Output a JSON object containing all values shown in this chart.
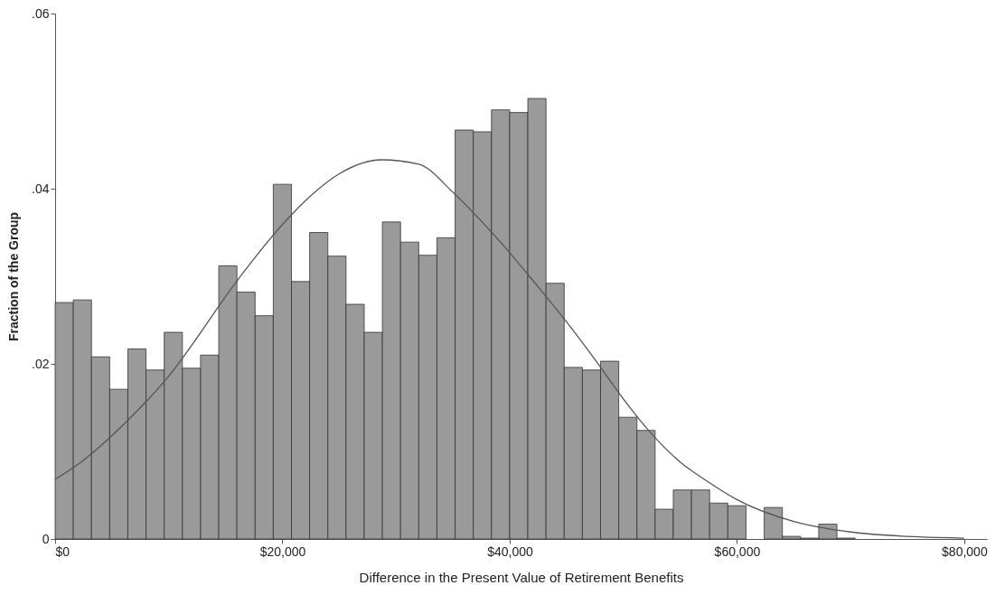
{
  "chart_data": {
    "type": "histogram",
    "xlabel": "Difference in the Present Value of Retirement Benefits",
    "ylabel": "Fraction of the Group",
    "bins": [
      0,
      1600,
      3200,
      4800,
      6400,
      8000,
      9600,
      11200,
      12800,
      14400,
      16000,
      17600,
      19200,
      20800,
      22400,
      24000,
      25600,
      27200,
      28800,
      30400,
      32000,
      33600,
      35200,
      36800,
      38400,
      40000,
      41600,
      43200,
      44800,
      46400,
      48000,
      49600,
      51200,
      52800,
      54400,
      56000,
      57600,
      59200,
      60800,
      62400,
      64000,
      65600,
      67200,
      68800,
      70400
    ],
    "values": [
      0.027,
      0.0273,
      0.0208,
      0.0171,
      0.0217,
      0.0193,
      0.0236,
      0.0195,
      0.021,
      0.0312,
      0.0282,
      0.0255,
      0.0405,
      0.0294,
      0.035,
      0.0323,
      0.0268,
      0.0236,
      0.0362,
      0.0339,
      0.0324,
      0.0344,
      0.0467,
      0.0465,
      0.049,
      0.0487,
      0.0503,
      0.0292,
      0.0196,
      0.0193,
      0.0203,
      0.0139,
      0.0124,
      0.0034,
      0.0056,
      0.0056,
      0.0041,
      0.0038,
      0,
      0.0036,
      0.0003,
      0.0001,
      0.0017,
      0.0001
    ],
    "color": "#9a9a9a",
    "series": [
      {
        "type": "line",
        "color": "#555555",
        "x": [
          0,
          2500,
          5000,
          7500,
          10000,
          12500,
          15000,
          17500,
          20000,
          22500,
          25000,
          28700,
          32000,
          35000,
          37500,
          40000,
          42500,
          45000,
          47500,
          50000,
          52500,
          55000,
          57500,
          60000,
          65000,
          70000,
          75000,
          80000
        ],
        "values": [
          0.0068,
          0.009,
          0.0118,
          0.015,
          0.0186,
          0.023,
          0.0277,
          0.032,
          0.0359,
          0.0392,
          0.0417,
          0.0433,
          0.0428,
          0.0396,
          0.0363,
          0.0327,
          0.0288,
          0.0248,
          0.0205,
          0.016,
          0.012,
          0.0088,
          0.0065,
          0.0045,
          0.002,
          0.0008,
          0.0003,
          0.0001
        ]
      }
    ],
    "xlim": [
      0,
      82000
    ],
    "xticks": [
      {
        "value": 0,
        "label": "$0"
      },
      {
        "value": 20000,
        "label": "$20,000"
      },
      {
        "value": 40000,
        "label": "$40,000"
      },
      {
        "value": 60000,
        "label": "$60,000"
      },
      {
        "value": 80000,
        "label": "$80,000"
      }
    ],
    "ylim": [
      0,
      0.06
    ],
    "yticks": [
      0,
      {
        "value": 0.02,
        "label": ".02"
      },
      {
        "value": 0.04,
        "label": ".04"
      },
      {
        "value": 0.06,
        "label": ".06"
      }
    ],
    "grid": false
  }
}
